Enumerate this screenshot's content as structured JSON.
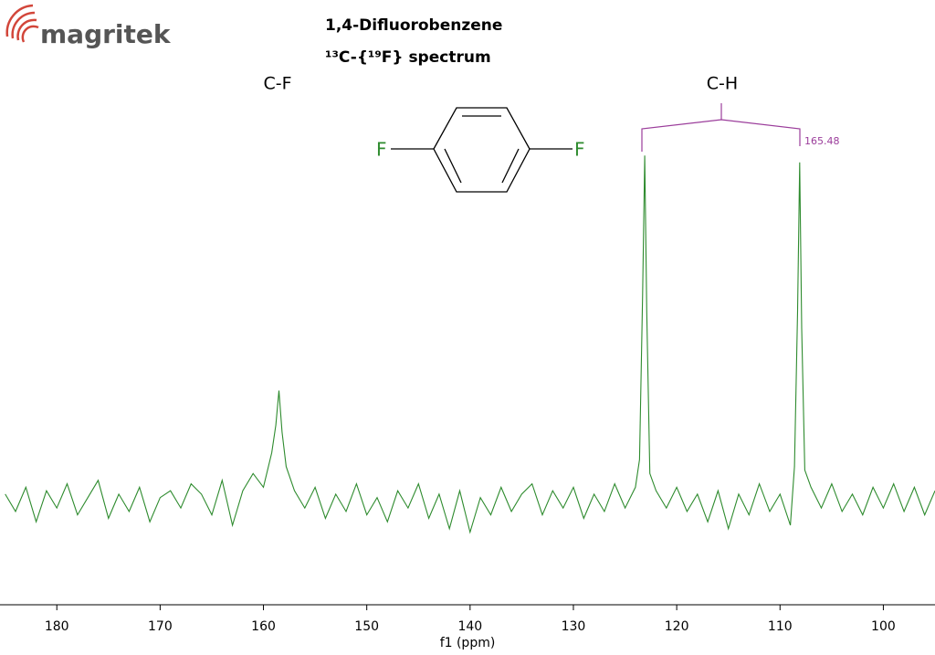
{
  "logo": "magritek",
  "chart_data": {
    "type": "line",
    "title": "1,4-Difluorobenzene",
    "subtitle": "¹³C-{¹⁹F} spectrum",
    "xlabel": "f1 (ppm)",
    "annotations": {
      "cf_label": "C-F",
      "ch_label": "C-H",
      "coupling": 165.48
    },
    "structure_atoms": [
      "F",
      "F"
    ],
    "xlim": [
      185.5,
      95.0
    ],
    "ylim": [
      -30,
      145
    ],
    "xticks": [
      180,
      170,
      160,
      150,
      140,
      130,
      120,
      110,
      100
    ],
    "color": "#2e8b2e",
    "x": [
      185,
      184,
      183,
      182,
      181,
      180,
      179,
      178,
      177,
      176,
      175,
      174,
      173,
      172,
      171,
      170,
      169,
      168,
      167,
      166,
      165,
      164,
      163,
      162,
      161,
      160,
      159.2,
      158.8,
      158.5,
      158.2,
      157.8,
      157,
      156,
      155,
      154,
      153,
      152,
      151,
      150,
      149,
      148,
      147,
      146,
      145,
      144,
      143,
      142,
      141,
      140,
      139,
      138,
      137,
      136,
      135,
      134,
      133,
      132,
      131,
      130,
      129,
      128,
      127,
      126,
      125,
      124,
      123.6,
      123.3,
      123.1,
      122.9,
      122.6,
      122,
      121,
      120,
      119,
      118,
      117,
      116,
      115,
      114,
      113,
      112,
      111,
      110,
      109,
      108.6,
      108.3,
      108.1,
      107.9,
      107.6,
      107,
      106,
      105,
      104,
      103,
      102,
      101,
      100,
      99,
      98,
      97,
      96,
      95
    ],
    "values": [
      2,
      -3,
      4,
      -6,
      3,
      -2,
      5,
      -4,
      1,
      6,
      -5,
      2,
      -3,
      4,
      -6,
      1,
      3,
      -2,
      5,
      2,
      -4,
      6,
      -7,
      3,
      8,
      4,
      14,
      22,
      32,
      20,
      10,
      3,
      -2,
      4,
      -5,
      2,
      -3,
      5,
      -4,
      1,
      -6,
      3,
      -2,
      5,
      -5,
      2,
      -8,
      3,
      -9,
      1,
      -4,
      4,
      -3,
      2,
      5,
      -4,
      3,
      -2,
      4,
      -5,
      2,
      -3,
      5,
      -2,
      4,
      12,
      60,
      100,
      55,
      8,
      3,
      -2,
      4,
      -3,
      2,
      -6,
      3,
      -8,
      2,
      -4,
      5,
      -3,
      2,
      -7,
      10,
      55,
      98,
      50,
      9,
      4,
      -2,
      5,
      -3,
      2,
      -4,
      4,
      -2,
      5,
      -3,
      4,
      -4,
      3
    ]
  }
}
